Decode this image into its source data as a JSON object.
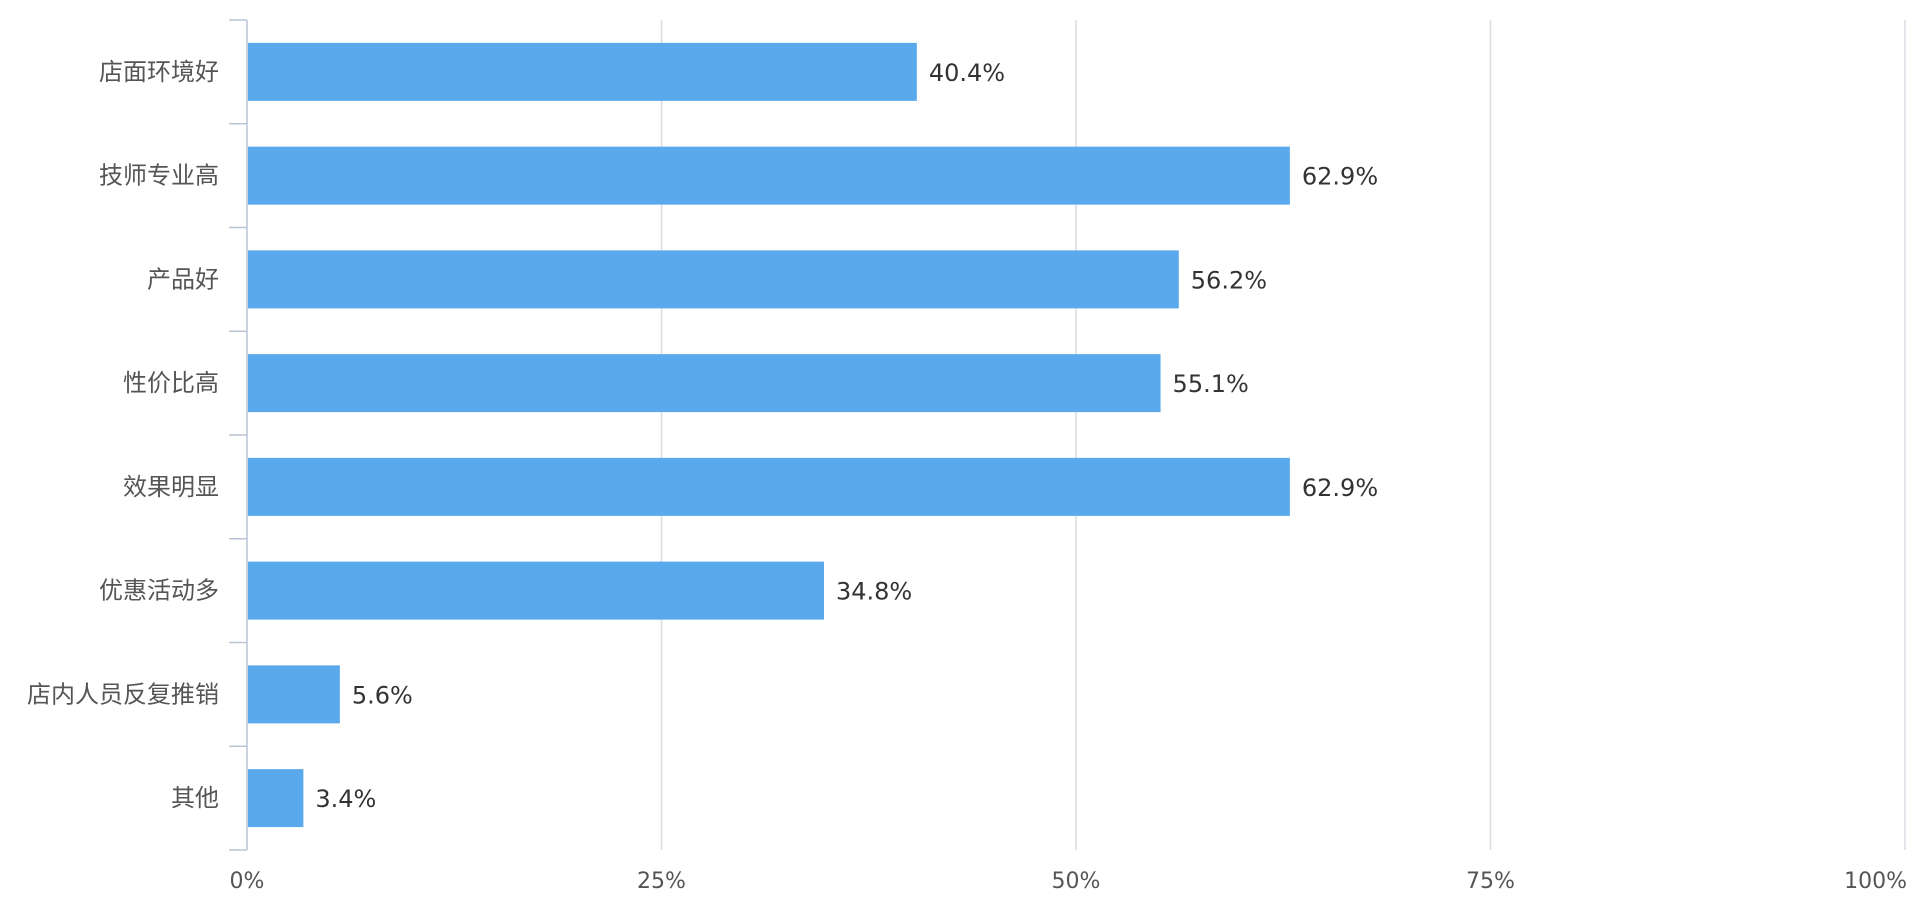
{
  "chart_data": {
    "type": "bar",
    "orientation": "horizontal",
    "title": "",
    "xlabel": "",
    "ylabel": "",
    "xlim": [
      0,
      100
    ],
    "x_ticks": [
      0,
      25,
      50,
      75,
      100
    ],
    "x_tick_labels": [
      "0%",
      "25%",
      "50%",
      "75%",
      "100%"
    ],
    "grid": true,
    "categories": [
      "店面环境好",
      "技师专业高",
      "产品好",
      "性价比高",
      "效果明显",
      "优惠活动多",
      "店内人员反复推销",
      "其他"
    ],
    "values": [
      40.4,
      62.9,
      56.2,
      55.1,
      62.9,
      34.8,
      5.6,
      3.4
    ],
    "value_labels": [
      "40.4%",
      "62.9%",
      "56.2%",
      "55.1%",
      "62.9%",
      "34.8%",
      "5.6%",
      "3.4%"
    ],
    "colors": {
      "bar": "#5aa9ec"
    }
  }
}
